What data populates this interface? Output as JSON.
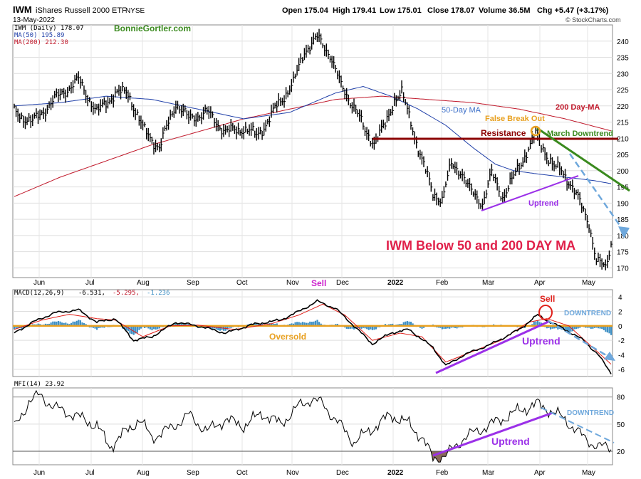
{
  "header": {
    "symbol": "IWM",
    "name": "iShares Russell 2000 ETF",
    "exchange": "NYSE",
    "date": "13-May-2022",
    "open": "Open 175.04",
    "high": "High 179.41",
    "low": "Low 175.01",
    "close": "Close 178.07",
    "volume": "Volume 36.5M",
    "change": "Chg +5.47 (+3.17%)",
    "source": "© StockCharts.com",
    "watermark": "BonnieGortler.com"
  },
  "legend": {
    "price": "IWM (Daily) 178.07",
    "ma50": "MA(50) 195.89",
    "ma200": "MA(200) 212.30",
    "macd_prefix": "MACD(12,26,9)",
    "macd_v1": "-6.531,",
    "macd_v2": "-5.295,",
    "macd_v3": "-1.236",
    "mfi": "MFI(14) 23.92"
  },
  "annotations": {
    "ma200": "200 Day-MA",
    "ma50": "50-Day MA",
    "false_break": "False Break Out",
    "resistance": "Resistance",
    "march_downtrend": "March Downtrend",
    "uptrend_price": "Uptrend",
    "headline": "IWM Below 50 and 200 DAY MA",
    "sell_top": "Sell",
    "sell_macd": "Sell",
    "downtrend_macd": "DOWNTREND",
    "oversold": "Oversold",
    "uptrend_macd": "Uptrend",
    "downtrend_mfi": "DOWNTREND",
    "uptrend_mfi": "Uptrend"
  },
  "colors": {
    "price": "#000000",
    "ma50": "#1f3fa8",
    "ma200": "#c0182a",
    "resistance": "#8b0000",
    "march_downtrend": "#3a8a1e",
    "uptrend": "#9b30e8",
    "projection": "#6fa8dc",
    "histogram": "#3d8fc4",
    "zero_line": "#e8a020",
    "headline": "#e0204a"
  },
  "chart_data": [
    {
      "type": "line",
      "title": "IWM (Daily)",
      "ylim": [
        167,
        245
      ],
      "y_ticks": [
        170,
        175,
        180,
        185,
        190,
        195,
        200,
        205,
        210,
        215,
        220,
        225,
        230,
        235,
        240
      ],
      "x_labels": [
        "Jun",
        "Jul",
        "Aug",
        "Sep",
        "Oct",
        "Nov",
        "Dec",
        "2022",
        "Feb",
        "Mar",
        "Apr",
        "May"
      ],
      "grid": true,
      "series": [
        {
          "name": "IWM (Daily)",
          "last": 178.07,
          "anchors": [
            [
              0,
              218
            ],
            [
              10,
              215
            ],
            [
              22,
              222
            ],
            [
              35,
              228
            ],
            [
              45,
              218
            ],
            [
              55,
              224
            ],
            [
              62,
              224
            ],
            [
              70,
              213
            ],
            [
              79,
              207
            ],
            [
              88,
              221
            ],
            [
              95,
              216
            ],
            [
              105,
              218
            ],
            [
              115,
              212
            ],
            [
              125,
              213
            ],
            [
              132,
              211
            ],
            [
              138,
              215
            ],
            [
              143,
              220
            ],
            [
              152,
              227
            ],
            [
              158,
              237
            ],
            [
              165,
              241
            ],
            [
              172,
              236
            ],
            [
              178,
              226
            ],
            [
              186,
              219
            ],
            [
              191,
              212
            ],
            [
              196,
              209
            ],
            [
              202,
              214
            ],
            [
              207,
              222
            ],
            [
              211,
              224
            ],
            [
              216,
              215
            ],
            [
              221,
              205
            ],
            [
              228,
              193
            ],
            [
              233,
              191
            ],
            [
              238,
              202
            ],
            [
              243,
              200
            ],
            [
              248,
              194
            ],
            [
              255,
              190
            ],
            [
              260,
              199
            ],
            [
              266,
              192
            ],
            [
              273,
              199
            ],
            [
              280,
              207
            ],
            [
              284,
              211
            ],
            [
              289,
              206
            ],
            [
              294,
              201
            ],
            [
              298,
              200
            ],
            [
              303,
              196
            ],
            [
              308,
              190
            ],
            [
              313,
              184
            ],
            [
              317,
              172
            ],
            [
              322,
              170
            ],
            [
              325,
              178
            ]
          ]
        },
        {
          "name": "MA(50)",
          "last": 195.89,
          "anchors": [
            [
              0,
              220
            ],
            [
              25,
              221
            ],
            [
              50,
              223
            ],
            [
              75,
              222
            ],
            [
              100,
              219
            ],
            [
              125,
              216
            ],
            [
              150,
              218
            ],
            [
              175,
              224
            ],
            [
              190,
              226
            ],
            [
              205,
              223
            ],
            [
              220,
              219
            ],
            [
              235,
              214
            ],
            [
              250,
              207
            ],
            [
              262,
              202
            ],
            [
              272,
              200
            ],
            [
              285,
              199
            ],
            [
              300,
              198
            ],
            [
              315,
              197
            ],
            [
              325,
              196
            ]
          ]
        },
        {
          "name": "MA(200)",
          "last": 212.3,
          "anchors": [
            [
              0,
              192
            ],
            [
              25,
              198
            ],
            [
              50,
              203
            ],
            [
              75,
              208
            ],
            [
              100,
              212
            ],
            [
              125,
              216
            ],
            [
              150,
              219
            ],
            [
              175,
              222
            ],
            [
              200,
              223
            ],
            [
              225,
              222
            ],
            [
              250,
              221
            ],
            [
              275,
              219
            ],
            [
              300,
              216
            ],
            [
              325,
              212.3
            ]
          ]
        }
      ],
      "annotations": {
        "resistance_level": 209
      }
    },
    {
      "type": "line",
      "title": "MACD(12,26,9)",
      "ylim": [
        -7,
        5
      ],
      "y_ticks": [
        -6,
        -4,
        -2,
        0,
        2,
        4
      ],
      "series": [
        {
          "name": "MACD",
          "last": -6.531,
          "anchors": [
            [
              0,
              -1
            ],
            [
              10,
              0.5
            ],
            [
              22,
              1.8
            ],
            [
              35,
              2.2
            ],
            [
              45,
              0.5
            ],
            [
              55,
              1.0
            ],
            [
              65,
              -2
            ],
            [
              75,
              -1.5
            ],
            [
              88,
              0.5
            ],
            [
              100,
              0
            ],
            [
              115,
              -1
            ],
            [
              130,
              0.2
            ],
            [
              145,
              0.8
            ],
            [
              155,
              2.0
            ],
            [
              165,
              3.4
            ],
            [
              175,
              2.4
            ],
            [
              185,
              0
            ],
            [
              195,
              -2.5
            ],
            [
              205,
              -1
            ],
            [
              215,
              -0.5
            ],
            [
              228,
              -3
            ],
            [
              235,
              -5.5
            ],
            [
              245,
              -4
            ],
            [
              260,
              -2.5
            ],
            [
              275,
              -0.5
            ],
            [
              285,
              1.5
            ],
            [
              292,
              0.5
            ],
            [
              300,
              -0.5
            ],
            [
              310,
              -2
            ],
            [
              318,
              -4
            ],
            [
              325,
              -6.53
            ]
          ]
        },
        {
          "name": "Signal",
          "last": -5.295,
          "anchors": [
            [
              0,
              -0.5
            ],
            [
              15,
              0.8
            ],
            [
              30,
              1.6
            ],
            [
              45,
              1.0
            ],
            [
              55,
              0.8
            ],
            [
              70,
              -1.5
            ],
            [
              85,
              0
            ],
            [
              100,
              0.1
            ],
            [
              120,
              -0.5
            ],
            [
              140,
              0.3
            ],
            [
              155,
              1.5
            ],
            [
              168,
              3.0
            ],
            [
              180,
              1.5
            ],
            [
              195,
              -2
            ],
            [
              210,
              -1
            ],
            [
              222,
              -1.5
            ],
            [
              235,
              -5
            ],
            [
              250,
              -3.5
            ],
            [
              265,
              -2
            ],
            [
              280,
              0.5
            ],
            [
              290,
              1.0
            ],
            [
              302,
              0
            ],
            [
              315,
              -3
            ],
            [
              325,
              -5.3
            ]
          ]
        }
      ],
      "histogram_last": -1.236
    },
    {
      "type": "line",
      "title": "MFI(14)",
      "ylim": [
        5,
        90
      ],
      "y_ticks": [
        20,
        50,
        80
      ],
      "series": [
        {
          "name": "MFI(14)",
          "last": 23.92,
          "anchors": [
            [
              0,
              45
            ],
            [
              8,
              75
            ],
            [
              14,
              82
            ],
            [
              22,
              68
            ],
            [
              30,
              62
            ],
            [
              38,
              55
            ],
            [
              45,
              48
            ],
            [
              52,
              25
            ],
            [
              60,
              40
            ],
            [
              68,
              55
            ],
            [
              75,
              35
            ],
            [
              85,
              45
            ],
            [
              95,
              60
            ],
            [
              105,
              42
            ],
            [
              115,
              55
            ],
            [
              125,
              48
            ],
            [
              135,
              62
            ],
            [
              145,
              50
            ],
            [
              155,
              70
            ],
            [
              162,
              78
            ],
            [
              168,
              72
            ],
            [
              175,
              55
            ],
            [
              185,
              30
            ],
            [
              195,
              45
            ],
            [
              205,
              60
            ],
            [
              215,
              50
            ],
            [
              222,
              35
            ],
            [
              228,
              12
            ],
            [
              235,
              15
            ],
            [
              245,
              35
            ],
            [
              255,
              45
            ],
            [
              265,
              55
            ],
            [
              275,
              65
            ],
            [
              285,
              72
            ],
            [
              292,
              65
            ],
            [
              300,
              55
            ],
            [
              310,
              35
            ],
            [
              318,
              25
            ],
            [
              325,
              24
            ]
          ]
        }
      ]
    }
  ]
}
